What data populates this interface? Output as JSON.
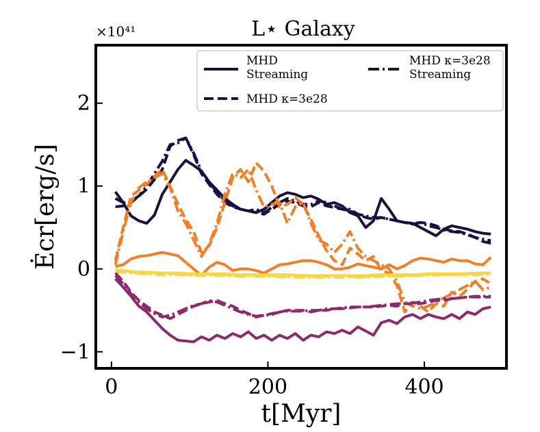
{
  "chart_data": {
    "type": "line",
    "title": "L⋆ Galaxy",
    "xlabel": "t[Myr]",
    "ylabel": "Ėcr[erg/s]",
    "multiplier": "×10⁴¹",
    "xlim": [
      -20,
      505
    ],
    "ylim": [
      -1.2,
      2.7
    ],
    "xticks": [
      0,
      200,
      400
    ],
    "xtick_labels": [
      "0",
      "200",
      "400"
    ],
    "yticks": [
      -1,
      0,
      1,
      2
    ],
    "ytick_labels": [
      "−1",
      "0",
      "1",
      "2"
    ],
    "legend": {
      "location": "upper-right",
      "entries": [
        {
          "label": "MHD\nStreaming",
          "style": "solid"
        },
        {
          "label": "MHD κ=3e28",
          "style": "dashed"
        },
        {
          "label": "MHD κ=3e28\nStreaming",
          "style": "dashdot"
        }
      ]
    },
    "colors": {
      "dark": "#1a0f3f",
      "orange": "#f07f28",
      "yellow": "#f6d746",
      "magenta": "#8c2a6a"
    },
    "series": [
      {
        "name": "dark MHD Streaming",
        "color": "#1a0f3f",
        "style": "solid",
        "x": [
          5,
          15,
          25,
          35,
          45,
          55,
          65,
          75,
          85,
          95,
          105,
          115,
          125,
          135,
          145,
          155,
          165,
          175,
          185,
          195,
          205,
          215,
          225,
          235,
          245,
          255,
          265,
          275,
          285,
          295,
          305,
          315,
          325,
          335,
          345,
          355,
          365,
          375,
          385,
          395,
          405,
          415,
          425,
          435,
          445,
          455,
          465,
          475,
          485
        ],
        "y": [
          0.93,
          0.8,
          0.64,
          0.58,
          0.55,
          0.65,
          0.9,
          1.05,
          1.2,
          1.31,
          1.25,
          1.18,
          1.05,
          0.95,
          0.85,
          0.78,
          0.72,
          0.7,
          0.68,
          0.72,
          0.8,
          0.88,
          0.92,
          0.9,
          0.86,
          0.88,
          0.84,
          0.78,
          0.8,
          0.76,
          0.68,
          0.64,
          0.5,
          0.58,
          0.85,
          0.72,
          0.58,
          0.56,
          0.55,
          0.5,
          0.45,
          0.4,
          0.48,
          0.52,
          0.5,
          0.48,
          0.45,
          0.43,
          0.42
        ]
      },
      {
        "name": "dark MHD kappa",
        "color": "#1a0f3f",
        "style": "dashed",
        "x": [
          5,
          15,
          25,
          35,
          45,
          55,
          65,
          75,
          85,
          95,
          105,
          115,
          125,
          135,
          145,
          155,
          165,
          175,
          185,
          195,
          205,
          215,
          225,
          235,
          245,
          255,
          265,
          275,
          285,
          295,
          305,
          315,
          325,
          335,
          345,
          355,
          365,
          375,
          385,
          395,
          405,
          415,
          425,
          435,
          445,
          455,
          465,
          475,
          485
        ],
        "y": [
          0.75,
          0.76,
          0.8,
          0.88,
          0.96,
          1.08,
          1.2,
          1.48,
          1.55,
          1.58,
          1.38,
          1.15,
          1.02,
          0.9,
          0.8,
          0.75,
          0.72,
          0.7,
          0.68,
          0.66,
          0.72,
          0.78,
          0.82,
          0.8,
          0.76,
          0.75,
          0.8,
          0.76,
          0.74,
          0.72,
          0.7,
          0.66,
          0.62,
          0.6,
          0.62,
          0.6,
          0.58,
          0.56,
          0.55,
          0.56,
          0.55,
          0.52,
          0.48,
          0.46,
          0.45,
          0.42,
          0.38,
          0.33,
          0.31
        ]
      },
      {
        "name": "dark MHD kappa Streaming",
        "color": "#1a0f3f",
        "style": "dashdot",
        "x": [
          5,
          15,
          25,
          35,
          45,
          55,
          65,
          75,
          85,
          95,
          105,
          115,
          125,
          135,
          145,
          155,
          165,
          175,
          185,
          195,
          205,
          215,
          225,
          235,
          245,
          255,
          265,
          275,
          285,
          295,
          305,
          315,
          325,
          335,
          345,
          355,
          365,
          375,
          385,
          395,
          405,
          415,
          425,
          435,
          445,
          455,
          465,
          475,
          485
        ],
        "y": [
          0.85,
          0.8,
          0.82,
          0.88,
          1.0,
          1.15,
          1.3,
          1.5,
          1.52,
          1.58,
          1.4,
          1.18,
          1.05,
          0.92,
          0.82,
          0.76,
          0.72,
          0.7,
          0.72,
          0.68,
          0.74,
          0.8,
          0.85,
          0.82,
          0.78,
          0.78,
          0.82,
          0.8,
          0.76,
          0.72,
          0.72,
          0.66,
          0.64,
          0.62,
          0.62,
          0.6,
          0.58,
          0.56,
          0.54,
          0.56,
          0.52,
          0.5,
          0.47,
          0.45,
          0.44,
          0.41,
          0.38,
          0.36,
          0.34
        ]
      },
      {
        "name": "orange MHD Streaming",
        "color": "#f07f28",
        "style": "solid",
        "x": [
          5,
          15,
          25,
          35,
          45,
          55,
          65,
          75,
          85,
          95,
          105,
          115,
          125,
          135,
          145,
          155,
          165,
          175,
          185,
          195,
          205,
          215,
          225,
          235,
          245,
          255,
          265,
          275,
          285,
          295,
          305,
          315,
          325,
          335,
          345,
          355,
          365,
          375,
          385,
          395,
          405,
          415,
          425,
          435,
          445,
          455,
          465,
          475,
          485
        ],
        "y": [
          0.03,
          0.05,
          0.12,
          0.15,
          0.16,
          0.18,
          0.2,
          0.18,
          0.16,
          0.08,
          0.0,
          -0.08,
          0.02,
          0.08,
          0.05,
          -0.02,
          0.0,
          0.0,
          -0.02,
          -0.05,
          0.0,
          0.05,
          0.06,
          0.08,
          0.1,
          0.1,
          0.08,
          0.05,
          0.0,
          0.0,
          0.02,
          0.06,
          0.04,
          0.02,
          0.0,
          0.05,
          0.0,
          0.04,
          0.1,
          0.13,
          0.12,
          0.1,
          0.08,
          0.12,
          0.1,
          0.1,
          0.06,
          0.05,
          0.14
        ]
      },
      {
        "name": "orange MHD kappa",
        "color": "#f07f28",
        "style": "dashed",
        "x": [
          5,
          15,
          25,
          35,
          45,
          55,
          65,
          75,
          85,
          95,
          105,
          115,
          125,
          135,
          145,
          155,
          165,
          175,
          185,
          195,
          205,
          215,
          225,
          235,
          245,
          255,
          265,
          275,
          285,
          295,
          305,
          315,
          325,
          335,
          345,
          355,
          365,
          375,
          385,
          395,
          405,
          415,
          425,
          435,
          445,
          455,
          465,
          475,
          485
        ],
        "y": [
          0.1,
          0.5,
          0.88,
          0.95,
          1.02,
          1.12,
          1.2,
          1.0,
          0.78,
          0.6,
          0.45,
          0.2,
          0.28,
          0.5,
          0.8,
          1.1,
          1.2,
          1.05,
          1.28,
          1.18,
          1.0,
          0.75,
          0.78,
          0.86,
          0.78,
          0.6,
          0.4,
          0.22,
          0.1,
          0.05,
          0.25,
          0.18,
          0.1,
          0.15,
          -0.02,
          -0.05,
          -0.2,
          -0.52,
          -0.4,
          -0.45,
          -0.52,
          -0.42,
          -0.45,
          -0.28,
          -0.33,
          -0.25,
          -0.15,
          -0.12,
          -0.18
        ]
      },
      {
        "name": "orange MHD kappa Streaming",
        "color": "#f07f28",
        "style": "dashdot",
        "x": [
          5,
          15,
          25,
          35,
          45,
          55,
          65,
          75,
          85,
          95,
          105,
          115,
          125,
          135,
          145,
          155,
          165,
          175,
          185,
          195,
          205,
          215,
          225,
          235,
          245,
          255,
          265,
          275,
          285,
          295,
          305,
          315,
          325,
          335,
          345,
          355,
          365,
          375,
          385,
          395,
          405,
          415,
          425,
          435,
          445,
          455,
          465,
          475,
          485
        ],
        "y": [
          0.05,
          0.45,
          0.8,
          0.98,
          1.05,
          1.1,
          1.15,
          0.98,
          0.7,
          0.55,
          0.35,
          0.15,
          0.3,
          0.55,
          0.9,
          1.15,
          1.1,
          1.2,
          0.95,
          0.75,
          0.78,
          0.8,
          0.55,
          0.75,
          0.8,
          0.55,
          0.35,
          0.3,
          0.2,
          0.3,
          0.45,
          0.25,
          0.15,
          0.1,
          0.05,
          0.0,
          -0.15,
          -0.4,
          -0.45,
          -0.48,
          -0.45,
          -0.4,
          -0.35,
          -0.3,
          -0.25,
          -0.2,
          -0.15,
          -0.25,
          -0.22
        ]
      },
      {
        "name": "yellow MHD Streaming",
        "color": "#f6d746",
        "style": "solid",
        "x": [
          5,
          25,
          45,
          65,
          85,
          105,
          125,
          145,
          165,
          185,
          205,
          225,
          245,
          265,
          285,
          305,
          325,
          345,
          365,
          385,
          405,
          425,
          445,
          465,
          485
        ],
        "y": [
          -0.01,
          -0.03,
          -0.04,
          -0.05,
          -0.05,
          -0.06,
          -0.06,
          -0.06,
          -0.07,
          -0.07,
          -0.07,
          -0.07,
          -0.08,
          -0.08,
          -0.08,
          -0.08,
          -0.08,
          -0.07,
          -0.07,
          -0.07,
          -0.06,
          -0.06,
          -0.06,
          -0.05,
          -0.05
        ]
      },
      {
        "name": "yellow MHD kappa",
        "color": "#f6d746",
        "style": "dashed",
        "x": [
          5,
          25,
          45,
          65,
          85,
          105,
          125,
          145,
          165,
          185,
          205,
          225,
          245,
          265,
          285,
          305,
          325,
          345,
          365,
          385,
          405,
          425,
          445,
          465,
          485
        ],
        "y": [
          -0.02,
          -0.04,
          -0.05,
          -0.06,
          -0.06,
          -0.07,
          -0.07,
          -0.07,
          -0.08,
          -0.08,
          -0.08,
          -0.09,
          -0.09,
          -0.09,
          -0.09,
          -0.09,
          -0.09,
          -0.09,
          -0.08,
          -0.08,
          -0.07,
          -0.07,
          -0.07,
          -0.06,
          -0.06
        ]
      },
      {
        "name": "yellow MHD kappa Streaming",
        "color": "#f6d746",
        "style": "dashdot",
        "x": [
          5,
          25,
          45,
          65,
          85,
          105,
          125,
          145,
          165,
          185,
          205,
          225,
          245,
          265,
          285,
          305,
          325,
          345,
          365,
          385,
          405,
          425,
          445,
          465,
          485
        ],
        "y": [
          -0.03,
          -0.05,
          -0.06,
          -0.07,
          -0.07,
          -0.08,
          -0.08,
          -0.08,
          -0.09,
          -0.09,
          -0.09,
          -0.1,
          -0.1,
          -0.1,
          -0.1,
          -0.1,
          -0.1,
          -0.09,
          -0.09,
          -0.08,
          -0.08,
          -0.07,
          -0.07,
          -0.07,
          -0.06
        ]
      },
      {
        "name": "magenta MHD Streaming",
        "color": "#8c2a6a",
        "style": "solid",
        "x": [
          5,
          15,
          25,
          35,
          45,
          55,
          65,
          75,
          85,
          95,
          105,
          115,
          125,
          135,
          145,
          155,
          165,
          175,
          185,
          195,
          205,
          215,
          225,
          235,
          245,
          255,
          265,
          275,
          285,
          295,
          305,
          315,
          325,
          335,
          345,
          355,
          365,
          375,
          385,
          395,
          405,
          415,
          425,
          435,
          445,
          455,
          465,
          475,
          485
        ],
        "y": [
          -0.12,
          -0.22,
          -0.33,
          -0.45,
          -0.52,
          -0.62,
          -0.72,
          -0.8,
          -0.86,
          -0.87,
          -0.88,
          -0.82,
          -0.86,
          -0.8,
          -0.84,
          -0.78,
          -0.82,
          -0.76,
          -0.84,
          -0.8,
          -0.86,
          -0.8,
          -0.84,
          -0.78,
          -0.86,
          -0.8,
          -0.82,
          -0.76,
          -0.78,
          -0.74,
          -0.78,
          -0.7,
          -0.75,
          -0.8,
          -0.65,
          -0.62,
          -0.66,
          -0.58,
          -0.55,
          -0.6,
          -0.55,
          -0.58,
          -0.6,
          -0.55,
          -0.6,
          -0.52,
          -0.55,
          -0.48,
          -0.46
        ]
      },
      {
        "name": "magenta MHD kappa",
        "color": "#8c2a6a",
        "style": "dashed",
        "x": [
          5,
          15,
          25,
          35,
          45,
          55,
          65,
          75,
          85,
          95,
          105,
          115,
          125,
          135,
          145,
          155,
          165,
          175,
          185,
          195,
          205,
          215,
          225,
          235,
          245,
          255,
          265,
          275,
          285,
          295,
          305,
          315,
          325,
          335,
          345,
          355,
          365,
          375,
          385,
          395,
          405,
          415,
          425,
          435,
          445,
          455,
          465,
          475,
          485
        ],
        "y": [
          -0.05,
          -0.15,
          -0.28,
          -0.38,
          -0.45,
          -0.52,
          -0.56,
          -0.6,
          -0.55,
          -0.5,
          -0.45,
          -0.42,
          -0.4,
          -0.38,
          -0.42,
          -0.45,
          -0.5,
          -0.54,
          -0.58,
          -0.56,
          -0.54,
          -0.52,
          -0.5,
          -0.5,
          -0.5,
          -0.52,
          -0.5,
          -0.5,
          -0.48,
          -0.48,
          -0.47,
          -0.46,
          -0.46,
          -0.46,
          -0.45,
          -0.44,
          -0.45,
          -0.42,
          -0.42,
          -0.42,
          -0.4,
          -0.38,
          -0.38,
          -0.36,
          -0.35,
          -0.34,
          -0.34,
          -0.34,
          -0.34
        ]
      },
      {
        "name": "magenta MHD kappa Streaming",
        "color": "#8c2a6a",
        "style": "dashdot",
        "x": [
          5,
          15,
          25,
          35,
          45,
          55,
          65,
          75,
          85,
          95,
          105,
          115,
          125,
          135,
          145,
          155,
          165,
          175,
          185,
          195,
          205,
          215,
          225,
          235,
          245,
          255,
          265,
          275,
          285,
          295,
          305,
          315,
          325,
          335,
          345,
          355,
          365,
          375,
          385,
          395,
          405,
          415,
          425,
          435,
          445,
          455,
          465,
          475,
          485
        ],
        "y": [
          -0.08,
          -0.18,
          -0.3,
          -0.4,
          -0.48,
          -0.54,
          -0.58,
          -0.56,
          -0.52,
          -0.48,
          -0.44,
          -0.42,
          -0.38,
          -0.4,
          -0.44,
          -0.48,
          -0.52,
          -0.55,
          -0.57,
          -0.56,
          -0.55,
          -0.52,
          -0.51,
          -0.51,
          -0.51,
          -0.5,
          -0.5,
          -0.48,
          -0.48,
          -0.47,
          -0.46,
          -0.46,
          -0.46,
          -0.45,
          -0.44,
          -0.43,
          -0.42,
          -0.42,
          -0.41,
          -0.4,
          -0.38,
          -0.37,
          -0.36,
          -0.36,
          -0.35,
          -0.34,
          -0.33,
          -0.33,
          -0.33
        ]
      }
    ]
  }
}
